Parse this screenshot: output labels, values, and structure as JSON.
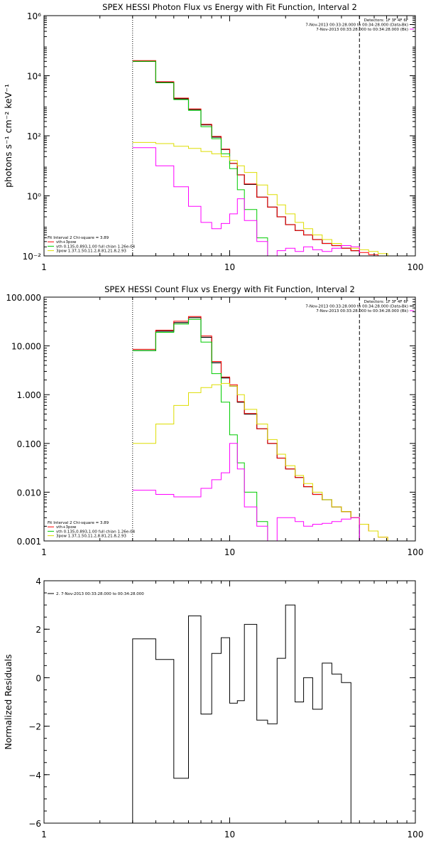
{
  "chart_data": [
    {
      "type": "line",
      "title": "SPEX HESSI Photon Flux vs Energy with Fit Function, Interval 2",
      "ylabel": "photons s⁻¹ cm⁻² keV⁻¹",
      "xlabel": "",
      "xscale": "log",
      "yscale": "log",
      "xlim": [
        1,
        100
      ],
      "ylim": [
        0.01,
        1000000
      ],
      "x_ticks": [
        {
          "v": 1,
          "label": "1"
        },
        {
          "v": 10,
          "label": "10"
        },
        {
          "v": 100,
          "label": "100"
        }
      ],
      "y_ticks": [
        {
          "v": 0.01,
          "label": "10⁻²"
        },
        {
          "v": 1,
          "label": "10⁰"
        },
        {
          "v": 100,
          "label": "10²"
        },
        {
          "v": 10000,
          "label": "10⁴"
        },
        {
          "v": 1000000,
          "label": "10⁶"
        }
      ],
      "vlines": [
        {
          "x": 3.0,
          "style": "dotted"
        },
        {
          "x": 50.0,
          "style": "dashed"
        }
      ],
      "legend_right": [
        {
          "text": "Detectors: 1F 3F 4F 6F",
          "color": ""
        },
        {
          "text": "7-Nov-2013 00:33:28.000 to 00:34:28.000 (Data-Bk)",
          "color": "#000000"
        },
        {
          "text": "7-Nov-2013 00:33:28.000 to 00:34:28.000 (Bk)",
          "color": "#ff00ff"
        }
      ],
      "legend_left": [
        {
          "text": "Fit Interval 2   Chi-square = 3.89",
          "color": ""
        },
        {
          "text": "vth+3pow",
          "color": "#ff0000"
        },
        {
          "text": "vth 0.135,0.893,1.00  full chian 1.26e-04",
          "color": "#00cc00"
        },
        {
          "text": "3pow 1.37,1.50,11.2,8.81,21.8,2.93",
          "color": "#dddd00"
        }
      ],
      "edges": [
        3.0,
        4.0,
        5.0,
        6.0,
        7.0,
        8.0,
        9.0,
        10.0,
        11.0,
        12.0,
        14.0,
        16.0,
        18.0,
        20.0,
        22.5,
        25.0,
        28.0,
        31.5,
        35.5,
        40.0,
        45.0,
        50.0,
        56.0,
        63.0,
        71.0,
        80.0
      ],
      "series": [
        {
          "name": "",
          "role": "data",
          "color": "#000000",
          "width": 1.2,
          "values": [
            30000,
            6000,
            1700,
            750,
            230,
            90,
            35,
            12,
            5,
            2.4,
            0.9,
            0.42,
            0.2,
            0.11,
            0.07,
            0.05,
            0.035,
            0.026,
            0.022,
            0.018,
            0.015
          ]
        },
        {
          "name": "vth+3pow",
          "role": "fit",
          "color": "#ff0000",
          "width": 1,
          "values": [
            32000,
            6300,
            1800,
            780,
            240,
            95,
            36,
            12,
            5,
            2.5,
            0.9,
            0.42,
            0.2,
            0.11,
            0.07,
            0.05,
            0.035,
            0.026,
            0.022,
            0.018,
            0.015,
            0.013,
            0.011,
            0.01,
            0.009
          ]
        },
        {
          "name": "vth",
          "role": "fit",
          "color": "#00cc00",
          "width": 1,
          "values": [
            30000,
            5800,
            1600,
            700,
            200,
            80,
            25,
            8,
            1.6,
            0.35,
            0.04,
            0.005
          ]
        },
        {
          "name": "3pow",
          "role": "fit",
          "color": "#dddd00",
          "width": 1,
          "values": [
            60,
            55,
            45,
            38,
            30,
            25,
            20,
            15,
            10,
            6,
            2.3,
            1.1,
            0.5,
            0.25,
            0.13,
            0.08,
            0.05,
            0.035,
            0.026,
            0.022,
            0.018,
            0.016,
            0.014,
            0.012,
            0.01
          ]
        },
        {
          "name": "",
          "role": "background",
          "color": "#ff00ff",
          "width": 1,
          "values": [
            40,
            10,
            2,
            0.45,
            0.13,
            0.08,
            0.12,
            0.25,
            0.8,
            0.15,
            0.03,
            0.003,
            0.015,
            0.018,
            0.014,
            0.02,
            0.016,
            0.014,
            0.018,
            0.022,
            0.02
          ]
        }
      ]
    },
    {
      "type": "line",
      "title": "SPEX HESSI Count Flux vs Energy with Fit Function, Interval 2",
      "ylabel": "",
      "xlabel": "",
      "xscale": "log",
      "yscale": "log",
      "xlim": [
        1,
        100
      ],
      "ylim": [
        0.001,
        100
      ],
      "x_ticks": [
        {
          "v": 1,
          "label": "1"
        },
        {
          "v": 10,
          "label": "10"
        },
        {
          "v": 100,
          "label": "100"
        }
      ],
      "y_ticks": [
        {
          "v": 0.001,
          "label": "0.001"
        },
        {
          "v": 0.01,
          "label": "0.010"
        },
        {
          "v": 0.1,
          "label": "0.100"
        },
        {
          "v": 1,
          "label": "1.000"
        },
        {
          "v": 10,
          "label": "10.000"
        },
        {
          "v": 100,
          "label": "100.000"
        }
      ],
      "vlines": [
        {
          "x": 3.0,
          "style": "dotted"
        },
        {
          "x": 50.0,
          "style": "dashed"
        }
      ],
      "legend_right": [
        {
          "text": "Detectors: 1F 3F 4F 6F",
          "color": ""
        },
        {
          "text": "7-Nov-2013 00:33:28.000 to 00:34:28.000 (Data-Bk)",
          "color": "#000000"
        },
        {
          "text": "7-Nov-2013 00:33:28.000 to 00:34:28.000 (Bk)",
          "color": "#ff00ff"
        }
      ],
      "legend_left": [
        {
          "text": "Fit Interval 2   Chi-square = 3.89",
          "color": ""
        },
        {
          "text": "vth+3pow",
          "color": "#ff0000"
        },
        {
          "text": "vth 0.135,0.893,1.00  full chian 1.26e-04",
          "color": "#00cc00"
        },
        {
          "text": "3pow 1.37,1.50,11.2,8.81,21.8,2.93",
          "color": "#dddd00"
        }
      ],
      "edges": [
        3.0,
        4.0,
        5.0,
        6.0,
        7.0,
        8.0,
        9.0,
        10.0,
        11.0,
        12.0,
        14.0,
        16.0,
        18.0,
        20.0,
        22.5,
        25.0,
        28.0,
        31.5,
        35.5,
        40.0,
        45.0,
        50.0,
        56.0,
        63.0,
        71.0,
        80.0
      ],
      "series": [
        {
          "name": "",
          "role": "data",
          "color": "#000000",
          "width": 1.2,
          "values": [
            8,
            20,
            30,
            38,
            15,
            4.5,
            2.2,
            1.5,
            0.7,
            0.4,
            0.2,
            0.1,
            0.05,
            0.03,
            0.02,
            0.013,
            0.009,
            0.007,
            0.005,
            0.004,
            0.003
          ]
        },
        {
          "name": "vth+3pow",
          "role": "fit",
          "color": "#ff0000",
          "width": 1,
          "values": [
            8.5,
            21,
            32,
            40,
            16,
            4.8,
            2.3,
            1.6,
            0.72,
            0.41,
            0.2,
            0.1,
            0.05,
            0.03,
            0.02,
            0.013,
            0.009,
            0.007,
            0.005,
            0.004,
            0.003,
            0.0022,
            0.0016,
            0.0012,
            0.001
          ]
        },
        {
          "name": "vth",
          "role": "fit",
          "color": "#00cc00",
          "width": 1,
          "values": [
            8,
            19,
            28,
            35,
            12,
            2.7,
            0.7,
            0.15,
            0.04,
            0.01,
            0.0025,
            0.0008
          ]
        },
        {
          "name": "3pow",
          "role": "fit",
          "color": "#dddd00",
          "width": 1,
          "values": [
            0.1,
            0.25,
            0.6,
            1.1,
            1.4,
            1.6,
            1.7,
            1.5,
            1.0,
            0.5,
            0.25,
            0.12,
            0.06,
            0.035,
            0.022,
            0.015,
            0.01,
            0.007,
            0.005,
            0.004,
            0.003,
            0.0022,
            0.0016,
            0.0012,
            0.001
          ]
        },
        {
          "name": "",
          "role": "background",
          "color": "#ff00ff",
          "width": 1,
          "values": [
            0.011,
            0.009,
            0.008,
            0.008,
            0.012,
            0.018,
            0.025,
            0.1,
            0.03,
            0.005,
            0.002,
            0.001,
            0.003,
            0.003,
            0.0025,
            0.002,
            0.0022,
            0.0023,
            0.0025,
            0.0028,
            0.003
          ]
        }
      ]
    },
    {
      "type": "line",
      "title": "",
      "ylabel": "Normalized Residuals",
      "xlabel": "",
      "xscale": "log",
      "yscale": "linear",
      "xlim": [
        1,
        100
      ],
      "ylim": [
        -6,
        4
      ],
      "x_ticks": [
        {
          "v": 1,
          "label": "1"
        },
        {
          "v": 10,
          "label": "10"
        },
        {
          "v": 100,
          "label": "100"
        }
      ],
      "y_ticks": [
        {
          "v": -6,
          "label": "−6"
        },
        {
          "v": -4,
          "label": "−4"
        },
        {
          "v": -2,
          "label": "−2"
        },
        {
          "v": 0,
          "label": "0"
        },
        {
          "v": 2,
          "label": "2"
        },
        {
          "v": 4,
          "label": "4"
        }
      ],
      "vlines": [],
      "legend_right": [],
      "legend_left": [
        {
          "text": "2.  7-Nov-2013 00:33:28.000 to 00:34:28.000",
          "color": "#000000"
        }
      ],
      "edges": [
        3.0,
        4.0,
        5.0,
        6.0,
        7.0,
        8.0,
        9.0,
        10.0,
        11.0,
        12.0,
        14.0,
        16.0,
        18.0,
        20.0,
        22.5,
        25.0,
        28.0,
        31.5,
        35.5,
        40.0,
        45.0,
        50.0
      ],
      "series": [
        {
          "name": "",
          "role": "residual",
          "color": "#000000",
          "width": 1,
          "values": [
            1.6,
            0.75,
            -4.15,
            2.55,
            -1.5,
            1.0,
            1.65,
            -1.05,
            -0.95,
            2.2,
            -1.75,
            -1.9,
            0.8,
            3.0,
            -1.0,
            0.0,
            -1.3,
            0.6,
            0.15,
            -0.2
          ]
        }
      ]
    }
  ]
}
